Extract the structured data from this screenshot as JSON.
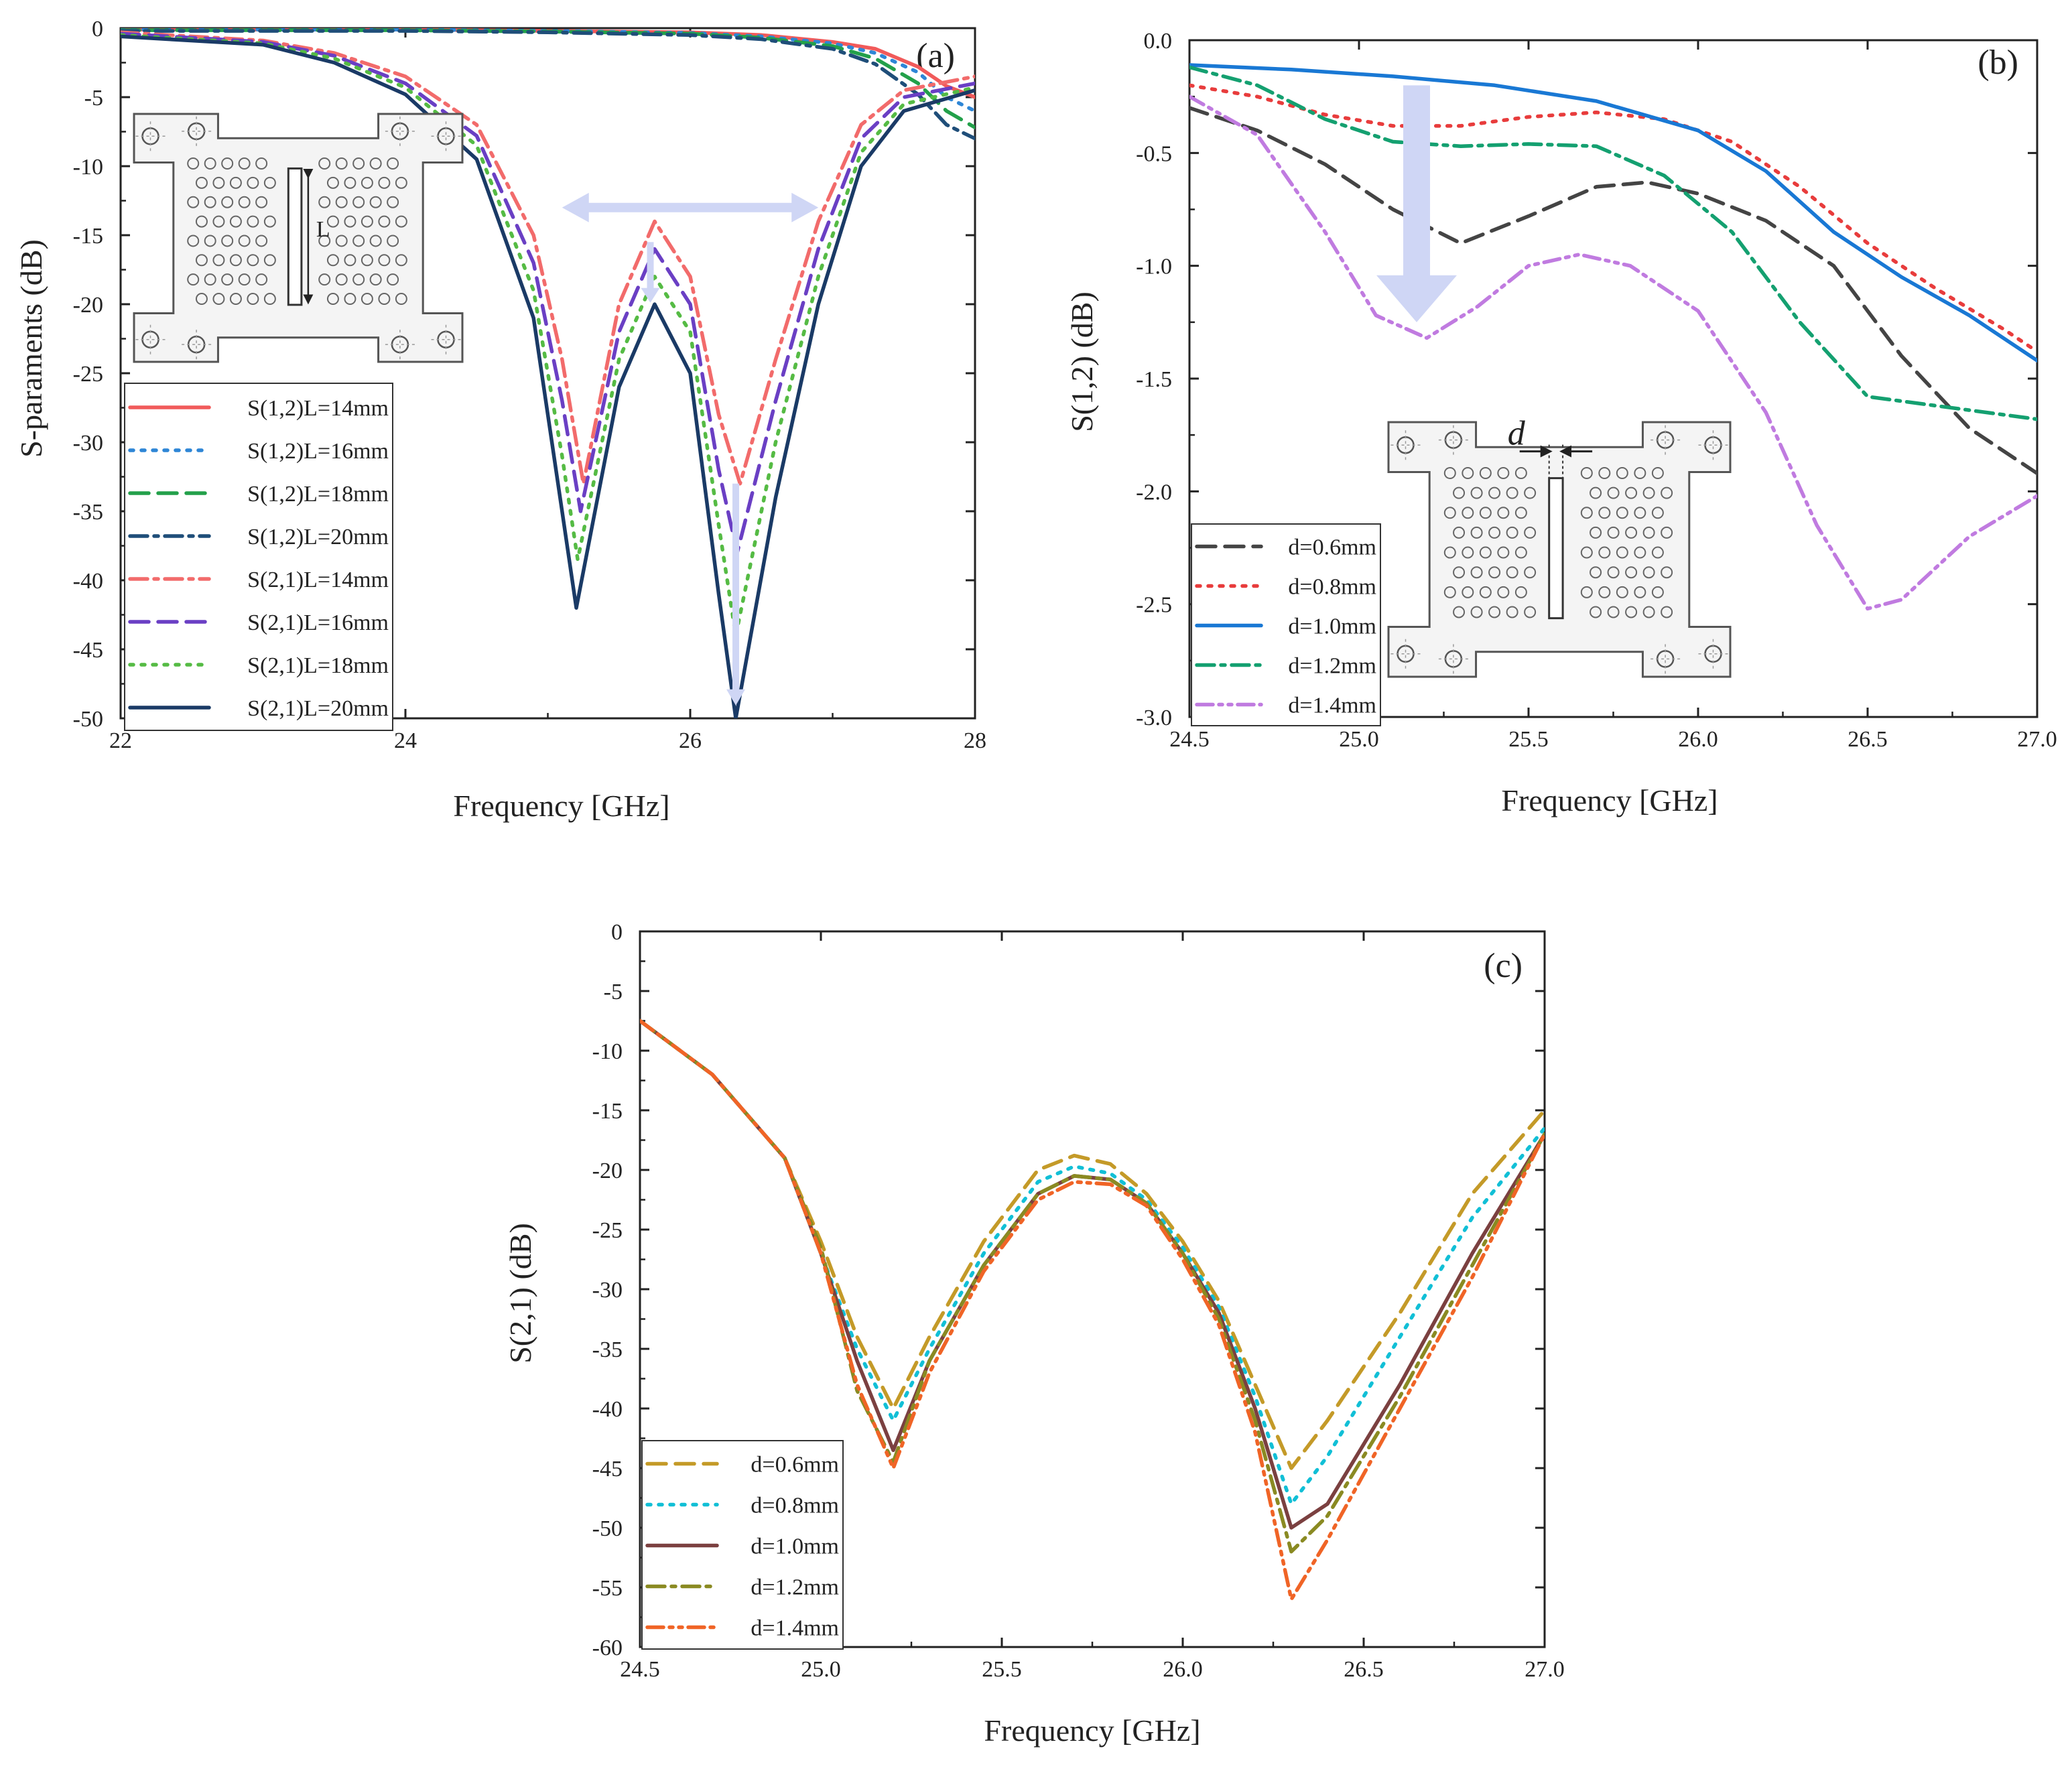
{
  "figure": {
    "colors": {
      "c_red": "#f15a5a",
      "c_blue": "#2e86d6",
      "c_green": "#23a04a",
      "c_navy": "#1f4e79",
      "c_pink": "#f26b6b",
      "c_purple": "#6a3fc4",
      "c_lime": "#55bb44",
      "c_dark": "#1a3a66",
      "c_gray": "#444444",
      "c_red2": "#e83c3c",
      "c_blue2": "#1978d4",
      "c_teal": "#14a070",
      "c_violet": "#c07be0",
      "c_gold": "#c49a28",
      "c_cyan": "#11bfd6",
      "c_maroon": "#7b4040",
      "c_olive": "#8a8a22",
      "c_orange": "#f06426",
      "arrow": "#cfd6f5"
    }
  },
  "chart_data": [
    {
      "panel": "(a)",
      "type": "line",
      "xlabel": "Frequency [GHz]",
      "ylabel": "S-paraments (dB)",
      "xlim": [
        22,
        28
      ],
      "ylim": [
        -50,
        0
      ],
      "xticks": [
        22,
        24,
        26,
        28
      ],
      "yticks": [
        0,
        -5,
        -10,
        -15,
        -20,
        -25,
        -30,
        -35,
        -40,
        -45,
        -50
      ],
      "xtick_labels": [
        "22",
        "24",
        "26",
        "28"
      ],
      "ytick_labels": [
        "0",
        "-5",
        "-10",
        "-15",
        "-20",
        "-25",
        "-30",
        "-35",
        "-40",
        "-45",
        "-50"
      ],
      "inset_label": "L",
      "series": [
        {
          "name": "S(1,2)L=14mm",
          "color": "c_red",
          "dash": "solid",
          "x": [
            22,
            23,
            24,
            25,
            26,
            26.5,
            27,
            27.3,
            27.6,
            27.8,
            28
          ],
          "y": [
            -0.1,
            -0.1,
            -0.1,
            -0.2,
            -0.3,
            -0.5,
            -1,
            -1.5,
            -2.8,
            -4.2,
            -5
          ]
        },
        {
          "name": "S(1,2)L=16mm",
          "color": "c_blue",
          "dash": "dot",
          "x": [
            22,
            23,
            24,
            25,
            26,
            26.5,
            27,
            27.3,
            27.6,
            27.8,
            28
          ],
          "y": [
            -0.1,
            -0.1,
            -0.1,
            -0.2,
            -0.35,
            -0.6,
            -1.1,
            -1.8,
            -3.2,
            -5,
            -6
          ]
        },
        {
          "name": "S(1,2)L=18mm",
          "color": "c_green",
          "dash": "dash",
          "x": [
            22,
            23,
            24,
            25,
            26,
            26.5,
            27,
            27.3,
            27.6,
            27.8,
            28
          ],
          "y": [
            -0.15,
            -0.15,
            -0.15,
            -0.25,
            -0.4,
            -0.7,
            -1.3,
            -2.2,
            -4,
            -6,
            -7.2
          ]
        },
        {
          "name": "S(1,2)L=20mm",
          "color": "c_navy",
          "dash": "dashdot",
          "x": [
            22,
            23,
            24,
            25,
            26,
            26.5,
            27,
            27.3,
            27.6,
            27.8,
            28
          ],
          "y": [
            -0.2,
            -0.2,
            -0.2,
            -0.3,
            -0.5,
            -0.8,
            -1.5,
            -2.6,
            -4.8,
            -7,
            -8
          ]
        },
        {
          "name": "S(2,1)L=14mm",
          "color": "c_pink",
          "dash": "dashdot",
          "x": [
            22,
            23,
            23.5,
            24,
            24.5,
            24.9,
            25.1,
            25.25,
            25.5,
            25.75,
            26,
            26.2,
            26.35,
            26.6,
            26.9,
            27.2,
            27.5,
            28
          ],
          "y": [
            -0.3,
            -0.9,
            -1.8,
            -3.5,
            -7,
            -15,
            -24,
            -33,
            -20,
            -14,
            -18,
            -28,
            -33,
            -24,
            -14,
            -7,
            -4.5,
            -3.5
          ]
        },
        {
          "name": "S(2,1)L=16mm",
          "color": "c_purple",
          "dash": "dash",
          "x": [
            22,
            23,
            23.5,
            24,
            24.5,
            24.9,
            25.1,
            25.23,
            25.5,
            25.75,
            26,
            26.2,
            26.33,
            26.6,
            26.9,
            27.2,
            27.5,
            28
          ],
          "y": [
            -0.4,
            -1,
            -2,
            -4,
            -7.8,
            -17,
            -27,
            -35,
            -22,
            -16,
            -20,
            -32,
            -38,
            -27,
            -16,
            -8,
            -5,
            -4
          ]
        },
        {
          "name": "S(2,1)L=18mm",
          "color": "c_lime",
          "dash": "dot",
          "x": [
            22,
            23,
            23.5,
            24,
            24.5,
            24.9,
            25.1,
            25.21,
            25.5,
            25.75,
            26,
            26.2,
            26.32,
            26.6,
            26.9,
            27.2,
            27.5,
            28
          ],
          "y": [
            -0.5,
            -1.1,
            -2.2,
            -4.3,
            -8.5,
            -19,
            -31,
            -38.5,
            -24,
            -18,
            -22,
            -36,
            -44,
            -30,
            -18,
            -9,
            -5.5,
            -4.3
          ]
        },
        {
          "name": "S(2,1)L=20mm",
          "color": "c_dark",
          "dash": "solid",
          "x": [
            22,
            23,
            23.5,
            24,
            24.5,
            24.9,
            25.1,
            25.2,
            25.5,
            25.75,
            26,
            26.2,
            26.32,
            26.6,
            26.9,
            27.2,
            27.5,
            28
          ],
          "y": [
            -0.6,
            -1.2,
            -2.5,
            -4.8,
            -9.5,
            -21,
            -35,
            -42,
            -26,
            -20,
            -25,
            -41,
            -50,
            -34,
            -20,
            -10,
            -6,
            -4.5
          ]
        }
      ]
    },
    {
      "panel": "(b)",
      "type": "line",
      "xlabel": "Frequency [GHz]",
      "ylabel": "S(1,2) (dB)",
      "xlim": [
        24.5,
        27.0
      ],
      "ylim": [
        -3.0,
        0.0
      ],
      "xticks": [
        24.5,
        25.0,
        25.5,
        26.0,
        26.5,
        27.0
      ],
      "yticks": [
        0.0,
        -0.5,
        -1.0,
        -1.5,
        -2.0,
        -2.5,
        -3.0
      ],
      "xtick_labels": [
        "24.5",
        "25.0",
        "25.5",
        "26.0",
        "26.5",
        "27.0"
      ],
      "ytick_labels": [
        "0.0",
        "-0.5",
        "-1.0",
        "-1.5",
        "-2.0",
        "-2.5",
        "-3.0"
      ],
      "inset_label": "d",
      "series": [
        {
          "name": "d=0.6mm",
          "color": "c_gray",
          "dash": "dash",
          "x": [
            24.5,
            24.7,
            24.9,
            25.1,
            25.3,
            25.5,
            25.7,
            25.85,
            26.0,
            26.2,
            26.4,
            26.6,
            26.8,
            27.0
          ],
          "y": [
            -0.3,
            -0.4,
            -0.55,
            -0.75,
            -0.9,
            -0.78,
            -0.65,
            -0.63,
            -0.68,
            -0.8,
            -1.0,
            -1.4,
            -1.72,
            -1.92
          ]
        },
        {
          "name": "d=0.8mm",
          "color": "c_red2",
          "dash": "dot",
          "x": [
            24.5,
            24.7,
            24.9,
            25.1,
            25.3,
            25.5,
            25.7,
            25.9,
            26.1,
            26.3,
            26.5,
            26.7,
            26.9,
            27.0
          ],
          "y": [
            -0.2,
            -0.25,
            -0.33,
            -0.38,
            -0.38,
            -0.34,
            -0.32,
            -0.35,
            -0.45,
            -0.65,
            -0.9,
            -1.1,
            -1.28,
            -1.38
          ]
        },
        {
          "name": "d=1.0mm",
          "color": "c_blue2",
          "dash": "solid",
          "x": [
            24.5,
            24.8,
            25.1,
            25.4,
            25.7,
            26.0,
            26.2,
            26.4,
            26.6,
            26.8,
            27.0
          ],
          "y": [
            -0.11,
            -0.13,
            -0.16,
            -0.2,
            -0.27,
            -0.4,
            -0.58,
            -0.85,
            -1.05,
            -1.22,
            -1.42
          ]
        },
        {
          "name": "d=1.2mm",
          "color": "c_teal",
          "dash": "dashdot",
          "x": [
            24.5,
            24.7,
            24.9,
            25.1,
            25.3,
            25.5,
            25.7,
            25.9,
            26.1,
            26.3,
            26.5,
            26.7,
            27.0
          ],
          "y": [
            -0.12,
            -0.2,
            -0.35,
            -0.45,
            -0.47,
            -0.46,
            -0.47,
            -0.6,
            -0.85,
            -1.25,
            -1.58,
            -1.62,
            -1.68
          ]
        },
        {
          "name": "d=1.4mm",
          "color": "c_violet",
          "dash": "dashdotdot",
          "x": [
            24.5,
            24.7,
            24.9,
            25.05,
            25.2,
            25.35,
            25.5,
            25.65,
            25.8,
            26.0,
            26.2,
            26.35,
            26.5,
            26.6,
            26.8,
            27.0
          ],
          "y": [
            -0.25,
            -0.42,
            -0.85,
            -1.22,
            -1.32,
            -1.18,
            -1.0,
            -0.95,
            -1.0,
            -1.2,
            -1.65,
            -2.15,
            -2.52,
            -2.48,
            -2.2,
            -2.02
          ]
        }
      ]
    },
    {
      "panel": "(c)",
      "type": "line",
      "xlabel": "Frequency [GHz]",
      "ylabel": "S(2,1) (dB)",
      "xlim": [
        24.5,
        27.0
      ],
      "ylim": [
        -60,
        0
      ],
      "xticks": [
        24.5,
        25.0,
        25.5,
        26.0,
        26.5,
        27.0
      ],
      "yticks": [
        0,
        -5,
        -10,
        -15,
        -20,
        -25,
        -30,
        -35,
        -40,
        -45,
        -50,
        -55,
        -60
      ],
      "xtick_labels": [
        "24.5",
        "25.0",
        "25.5",
        "26.0",
        "26.5",
        "27.0"
      ],
      "ytick_labels": [
        "0",
        "-5",
        "-10",
        "-15",
        "-20",
        "-25",
        "-30",
        "-35",
        "-40",
        "-45",
        "-50",
        "-55",
        "-60"
      ],
      "series": [
        {
          "name": "d=0.6mm",
          "color": "c_gold",
          "dash": "dash",
          "x": [
            24.5,
            24.7,
            24.9,
            25.0,
            25.1,
            25.2,
            25.3,
            25.45,
            25.6,
            25.7,
            25.8,
            25.9,
            26.0,
            26.1,
            26.2,
            26.3,
            26.4,
            26.6,
            26.8,
            27.0
          ],
          "y": [
            -7.5,
            -12,
            -19,
            -26,
            -34,
            -40,
            -34,
            -26,
            -20,
            -18.8,
            -19.5,
            -22,
            -26,
            -31,
            -38,
            -45,
            -41,
            -32,
            -22,
            -15
          ]
        },
        {
          "name": "d=0.8mm",
          "color": "c_cyan",
          "dash": "dot",
          "x": [
            24.5,
            24.7,
            24.9,
            25.0,
            25.1,
            25.2,
            25.3,
            25.45,
            25.6,
            25.7,
            25.8,
            25.9,
            26.0,
            26.1,
            26.2,
            26.3,
            26.4,
            26.6,
            26.8,
            27.0
          ],
          "y": [
            -7.5,
            -12,
            -19,
            -27,
            -35,
            -41,
            -35,
            -27,
            -21,
            -19.7,
            -20.3,
            -22.5,
            -26.5,
            -31.5,
            -39,
            -48,
            -44,
            -34,
            -24,
            -16.5
          ]
        },
        {
          "name": "d=1.0mm",
          "color": "c_maroon",
          "dash": "solid",
          "x": [
            24.5,
            24.7,
            24.9,
            25.0,
            25.1,
            25.2,
            25.3,
            25.45,
            25.6,
            25.7,
            25.8,
            25.9,
            26.0,
            26.1,
            26.2,
            26.3,
            26.4,
            26.6,
            26.8,
            27.0
          ],
          "y": [
            -7.5,
            -12,
            -19,
            -27,
            -36,
            -43.5,
            -36,
            -28,
            -22,
            -20.5,
            -20.8,
            -22.8,
            -27,
            -32,
            -40,
            -50,
            -48,
            -38,
            -27,
            -17
          ]
        },
        {
          "name": "d=1.2mm",
          "color": "c_olive",
          "dash": "dashdot",
          "x": [
            24.5,
            24.7,
            24.9,
            25.0,
            25.1,
            25.2,
            25.3,
            25.45,
            25.6,
            25.7,
            25.8,
            25.9,
            26.0,
            26.1,
            26.2,
            26.3,
            26.4,
            26.6,
            26.8,
            27.0
          ],
          "y": [
            -7.5,
            -12,
            -19,
            -26.5,
            -38.5,
            -44.5,
            -36,
            -28,
            -22,
            -20.5,
            -20.8,
            -22.8,
            -27,
            -32.5,
            -41,
            -52,
            -49,
            -39,
            -28,
            -17
          ]
        },
        {
          "name": "d=1.4mm",
          "color": "c_orange",
          "dash": "dashdotdot",
          "x": [
            24.5,
            24.7,
            24.9,
            25.0,
            25.1,
            25.2,
            25.3,
            25.45,
            25.6,
            25.7,
            25.8,
            25.9,
            26.0,
            26.1,
            26.2,
            26.3,
            26.4,
            26.6,
            26.8,
            27.0
          ],
          "y": [
            -7.5,
            -12,
            -19,
            -27,
            -38,
            -45,
            -37,
            -28.5,
            -22.5,
            -21,
            -21.2,
            -23,
            -27.5,
            -33,
            -42,
            -56,
            -51,
            -40,
            -29,
            -17
          ]
        }
      ]
    }
  ]
}
